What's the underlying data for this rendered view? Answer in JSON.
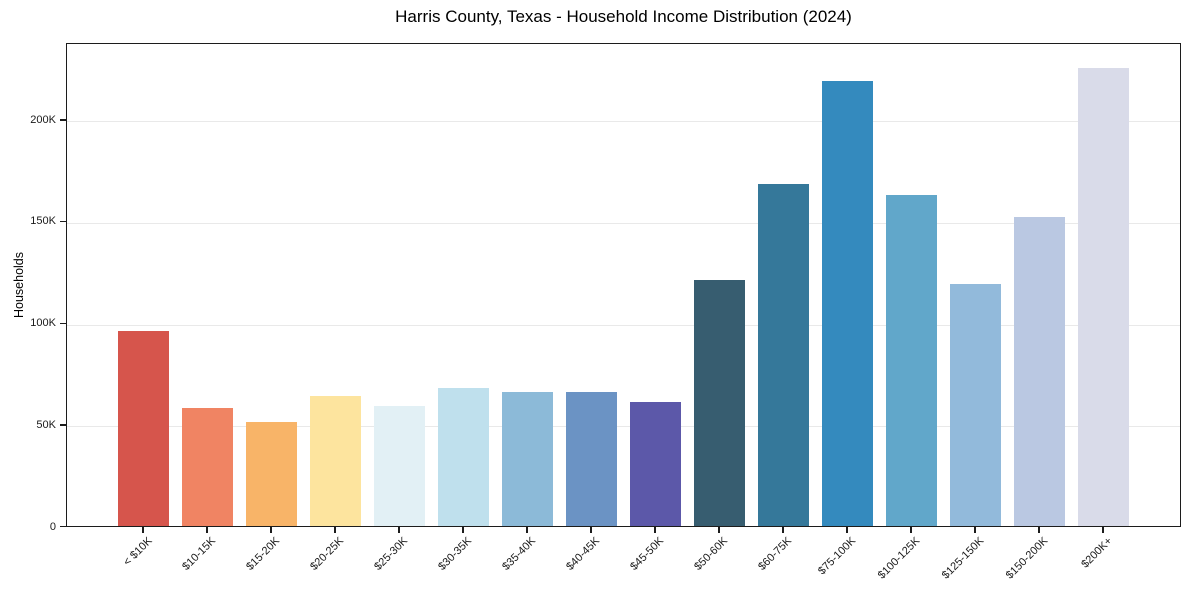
{
  "chart_data": {
    "type": "bar",
    "title": "Harris County, Texas - Household Income Distribution (2024)",
    "xlabel": "",
    "ylabel": "Households",
    "categories": [
      "< $10K",
      "$10-15K",
      "$15-20K",
      "$20-25K",
      "$25-30K",
      "$30-35K",
      "$35-40K",
      "$40-45K",
      "$45-50K",
      "$50-60K",
      "$60-75K",
      "$75-100K",
      "$100-125K",
      "$125-150K",
      "$150-200K",
      "$200K+"
    ],
    "values": [
      96000,
      58000,
      51000,
      64000,
      59000,
      68000,
      66000,
      66000,
      61000,
      121000,
      168000,
      219000,
      163000,
      119000,
      152000,
      225000
    ],
    "bar_colors": [
      "#d6554c",
      "#f08463",
      "#f8b468",
      "#fde49e",
      "#e2f0f5",
      "#bfe0ed",
      "#8cbad8",
      "#6b93c4",
      "#5c58a9",
      "#375d70",
      "#35789a",
      "#348abe",
      "#61a7ca",
      "#92badb",
      "#bac8e2",
      "#d9dbe9"
    ],
    "yticks": {
      "values": [
        0,
        50000,
        100000,
        150000,
        200000
      ],
      "labels": [
        "0",
        "50K",
        "100K",
        "150K",
        "200K"
      ]
    },
    "ylim": [
      0,
      238000
    ],
    "grid": "horizontal",
    "grid_color": "#e9e9e9",
    "legend": "none",
    "background": "#ffffff",
    "text_color": "#1a1a1a"
  }
}
